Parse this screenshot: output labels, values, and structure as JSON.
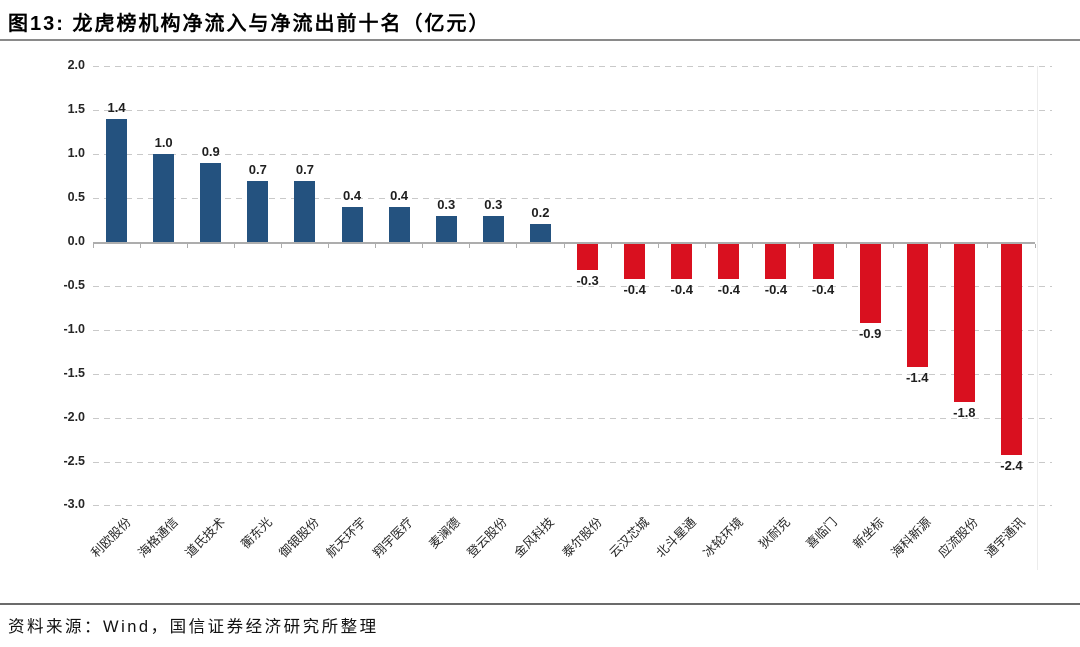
{
  "page": {
    "title": "图13: 龙虎榜机构净流入与净流出前十名（亿元）",
    "source": "资料来源：Wind，国信证券经济研究所整理"
  },
  "chart_data": {
    "type": "bar",
    "title": "龙虎榜机构净流入与净流出前十名（亿元）",
    "unit": "亿元",
    "categories": [
      "利欧股份",
      "海格通信",
      "道氏技术",
      "蘅东光",
      "御银股份",
      "航天环宇",
      "翔宇医疗",
      "麦澜德",
      "登云股份",
      "金风科技",
      "泰尔股份",
      "云汉芯城",
      "北斗星通",
      "冰轮环境",
      "狄耐克",
      "喜临门",
      "新坐标",
      "海科新源",
      "应流股份",
      "通宇通讯"
    ],
    "values": [
      1.4,
      1.0,
      0.9,
      0.7,
      0.7,
      0.4,
      0.4,
      0.3,
      0.3,
      0.2,
      -0.3,
      -0.4,
      -0.4,
      -0.4,
      -0.4,
      -0.4,
      -0.9,
      -1.4,
      -1.8,
      -2.4
    ],
    "value_labels": [
      "1.4",
      "1.0",
      "0.9",
      "0.7",
      "0.7",
      "0.4",
      "0.4",
      "0.3",
      "0.3",
      "0.2",
      "-0.3",
      "-0.4",
      "-0.4",
      "-0.4",
      "-0.4",
      "-0.4",
      "-0.9",
      "-1.4",
      "-1.8",
      "-2.4"
    ],
    "yticks": [
      "2.0",
      "1.5",
      "1.0",
      "0.5",
      "0.0",
      "-0.5",
      "-1.0",
      "-1.5",
      "-2.0",
      "-2.5",
      "-3.0"
    ],
    "ylim": [
      -3.0,
      2.0
    ],
    "ytick_step": 0.5,
    "grid": "horizontal-dashed",
    "legend": "none",
    "xlabel_rotation_deg": 45,
    "colors": {
      "positive": "#24527F",
      "negative": "#D9101F",
      "grid": "#C9C9C9",
      "axis": "#ADADAD",
      "rule": "#8A8A8A"
    }
  }
}
